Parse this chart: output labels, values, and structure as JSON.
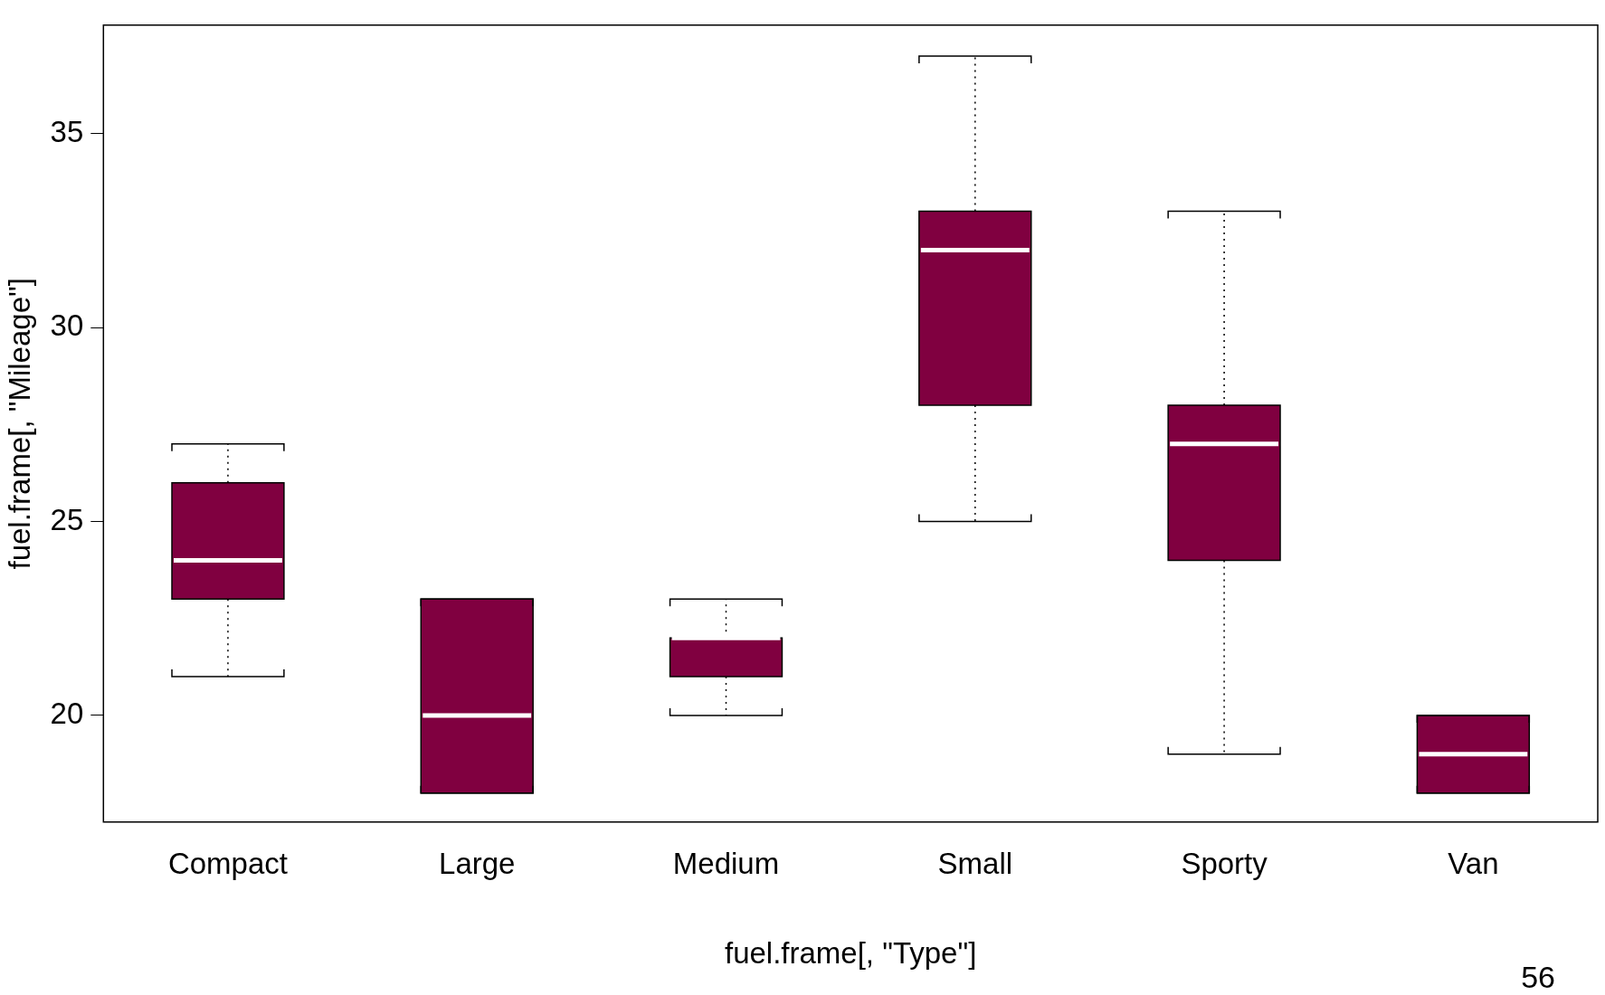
{
  "chart_data": {
    "type": "box",
    "xlabel": "fuel.frame[, \"Type\"]",
    "ylabel": "fuel.frame[, \"Mileage\"]",
    "categories": [
      "Compact",
      "Large",
      "Medium",
      "Small",
      "Sporty",
      "Van"
    ],
    "color": "#800040",
    "boxes": [
      {
        "low": 21,
        "q1": 23,
        "median": 24,
        "q3": 26,
        "high": 27
      },
      {
        "low": 18,
        "q1": 18,
        "median": 20,
        "q3": 23,
        "high": 23
      },
      {
        "low": 20,
        "q1": 21,
        "median": 22,
        "q3": 22,
        "high": 23
      },
      {
        "low": 25,
        "q1": 28,
        "median": 32,
        "q3": 33,
        "high": 37
      },
      {
        "low": 19,
        "q1": 24,
        "median": 27,
        "q3": 28,
        "high": 33
      },
      {
        "low": 18,
        "q1": 18,
        "median": 19,
        "q3": 20,
        "high": 20
      }
    ],
    "ylim": [
      17.25,
      37.8
    ],
    "yticks": [
      20,
      25,
      30,
      35
    ],
    "annotations": [
      "56"
    ]
  }
}
